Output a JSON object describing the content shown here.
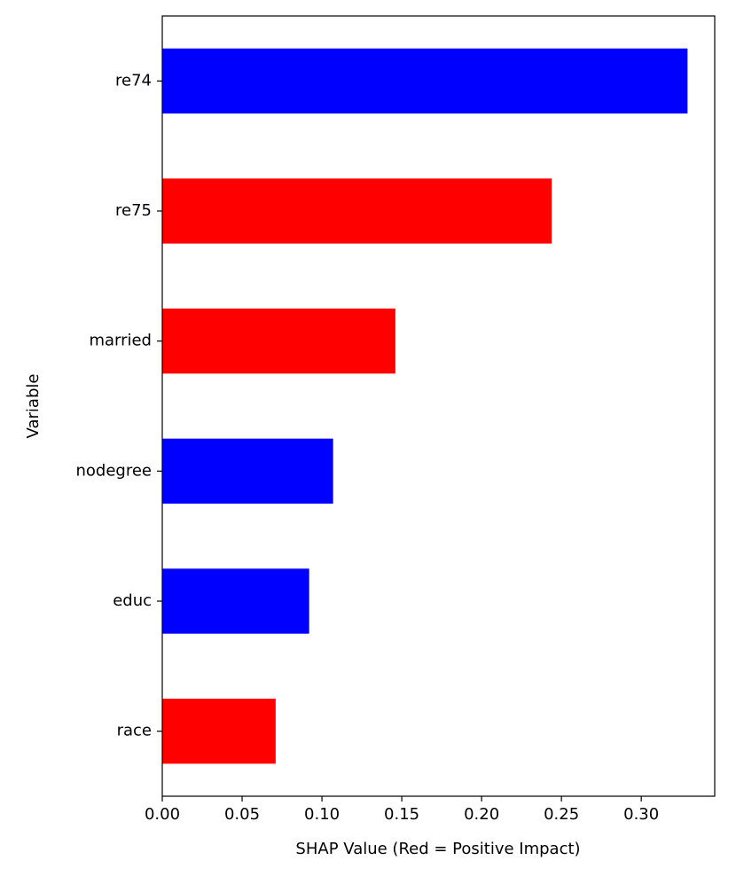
{
  "chart_data": {
    "type": "barh",
    "xlabel": "SHAP Value (Red = Positive Impact)",
    "ylabel": "Variable",
    "categories": [
      "re74",
      "re75",
      "married",
      "nodegree",
      "educ",
      "race"
    ],
    "values": [
      0.329,
      0.244,
      0.146,
      0.107,
      0.092,
      0.071
    ],
    "colors": [
      "#0000ff",
      "#ff0000",
      "#ff0000",
      "#0000ff",
      "#0000ff",
      "#ff0000"
    ],
    "xlim": [
      0,
      0.346
    ],
    "xticks": [
      {
        "value": 0,
        "label": "0.00"
      },
      {
        "value": 0.05,
        "label": "0.05"
      },
      {
        "value": 0.1,
        "label": "0.10"
      },
      {
        "value": 0.15,
        "label": "0.15"
      },
      {
        "value": 0.2,
        "label": "0.20"
      },
      {
        "value": 0.25,
        "label": "0.25"
      },
      {
        "value": 0.3,
        "label": "0.30"
      }
    ],
    "grid": false
  }
}
